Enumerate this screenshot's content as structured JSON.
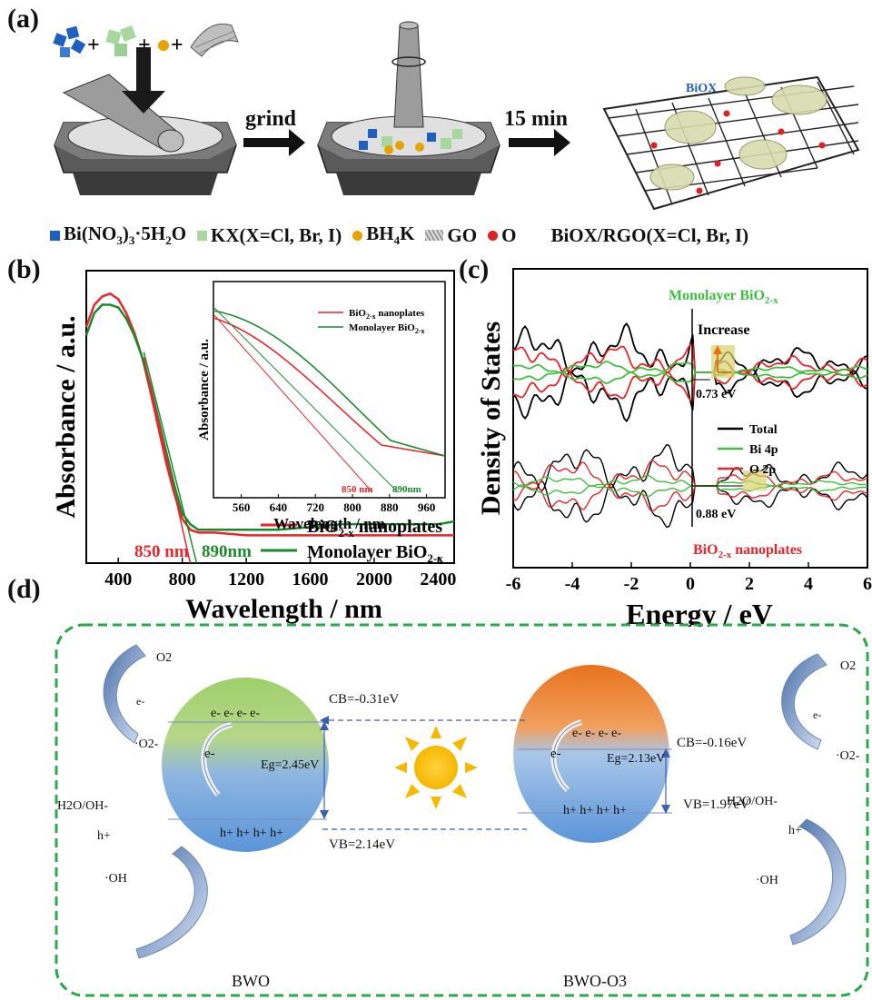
{
  "panel_a": {
    "label": "(a)",
    "step1": "grind",
    "step2": "15 min",
    "biox_label": "BiOX",
    "legend": {
      "bi": "Bi(NO3)3·5H2O",
      "kx": "KX(X=Cl, Br, I)",
      "bh4k": "BH4K",
      "go": "GO",
      "o": "O",
      "product": "BiOX/RGO(X=Cl, Br, I)"
    },
    "colors": {
      "bi": "#1f5fbf",
      "kx": "#a8d8a0",
      "bh4k": "#e8a300",
      "o": "#e02020"
    }
  },
  "panel_b": {
    "label": "(b)",
    "colors": {
      "nano": "#e8262b",
      "mono": "#1a8a2e"
    },
    "chart_data": {
      "type": "line",
      "xlabel": "Wavelength / nm",
      "ylabel": "Absorbance / a.u.",
      "xlim": [
        200,
        2500
      ],
      "xticks": [
        "400",
        "800",
        "1200",
        "1600",
        "2000",
        "2400"
      ],
      "series": [
        {
          "name": "BiO2-x nanoplates",
          "x": [
            200,
            250,
            300,
            350,
            400,
            450,
            500,
            550,
            600,
            650,
            700,
            750,
            800,
            850,
            900,
            1000,
            1200,
            1400,
            1600,
            1800,
            2000,
            2200,
            2400,
            2500
          ],
          "y": [
            0.85,
            0.93,
            0.96,
            0.97,
            0.95,
            0.9,
            0.83,
            0.74,
            0.62,
            0.49,
            0.36,
            0.25,
            0.16,
            0.12,
            0.11,
            0.11,
            0.1,
            0.1,
            0.1,
            0.1,
            0.1,
            0.1,
            0.1,
            0.1
          ]
        },
        {
          "name": "Monolayer BiO2-x",
          "x": [
            200,
            250,
            300,
            350,
            400,
            450,
            500,
            550,
            600,
            650,
            700,
            750,
            800,
            850,
            900,
            1000,
            1200,
            1400,
            1600,
            1800,
            2000,
            2200,
            2400,
            2500
          ],
          "y": [
            0.82,
            0.9,
            0.93,
            0.93,
            0.92,
            0.88,
            0.82,
            0.74,
            0.64,
            0.52,
            0.4,
            0.28,
            0.18,
            0.14,
            0.12,
            0.12,
            0.12,
            0.12,
            0.13,
            0.14,
            0.14,
            0.14,
            0.14,
            0.15
          ]
        }
      ],
      "edges": [
        {
          "label": "850 nm",
          "value": 850
        },
        {
          "label": "890nm",
          "value": 890
        }
      ],
      "legend": [
        "BiO2-x nanoplates",
        "Monolayer BiO2-x"
      ],
      "inset": {
        "xlabel": "Wavelength / nm",
        "ylabel": "Absorbance / a.u.",
        "xlim": [
          500,
          1000
        ],
        "xticks": [
          "560",
          "640",
          "720",
          "800",
          "880",
          "960"
        ],
        "legend": [
          "BiO2-x nanoplates",
          "Monolayer BiO2-x"
        ],
        "edges": [
          "850 nm",
          "890nm"
        ]
      }
    }
  },
  "panel_c": {
    "label": "(c)",
    "chart_data": {
      "type": "line",
      "xlabel": "Energy / eV",
      "ylabel": "Density of States",
      "xlim": [
        -6,
        6
      ],
      "xticks": [
        "-6",
        "-4",
        "-2",
        "0",
        "2",
        "4",
        "6"
      ],
      "top_label": "Monolayer BiO2-x",
      "bottom_label": "BiO2-x nanoplates",
      "annotations": [
        "Increase",
        "0.73 eV",
        "0.88 eV"
      ],
      "legend": [
        "Total",
        "Bi 4p",
        "O 2p"
      ],
      "colors": {
        "total": "#000000",
        "bi": "#3fbf3f",
        "o": "#e8262b"
      }
    }
  },
  "panel_d": {
    "label": "(d)",
    "left": {
      "name": "BWO",
      "cb": "CB=-0.31eV",
      "vb": "VB=2.14eV",
      "eg": "Eg=2.45eV",
      "electrons": "e- e- e- e-",
      "holes": "h+ h+ h+ h+",
      "e_arrow": "e-",
      "o2": "O2",
      "e_sup": "e-",
      "o2_rad": "·O2-",
      "h2o": "H2O/OH-",
      "hplus": "h+",
      "oh": "·OH"
    },
    "right": {
      "name": "BWO-O3",
      "cb": "CB=-0.16eV",
      "vb": "VB=1.97eV",
      "eg": "Eg=2.13eV",
      "electrons": "e- e- e- e-",
      "holes": "h+ h+ h+ h+",
      "e_arrow": "e-",
      "o2": "O2",
      "e_sup": "e-",
      "o2_rad": "·O2-",
      "h2o": "H2O/OH-",
      "hplus": "h+",
      "oh": "·OH"
    },
    "border_color": "#2aa84a"
  }
}
